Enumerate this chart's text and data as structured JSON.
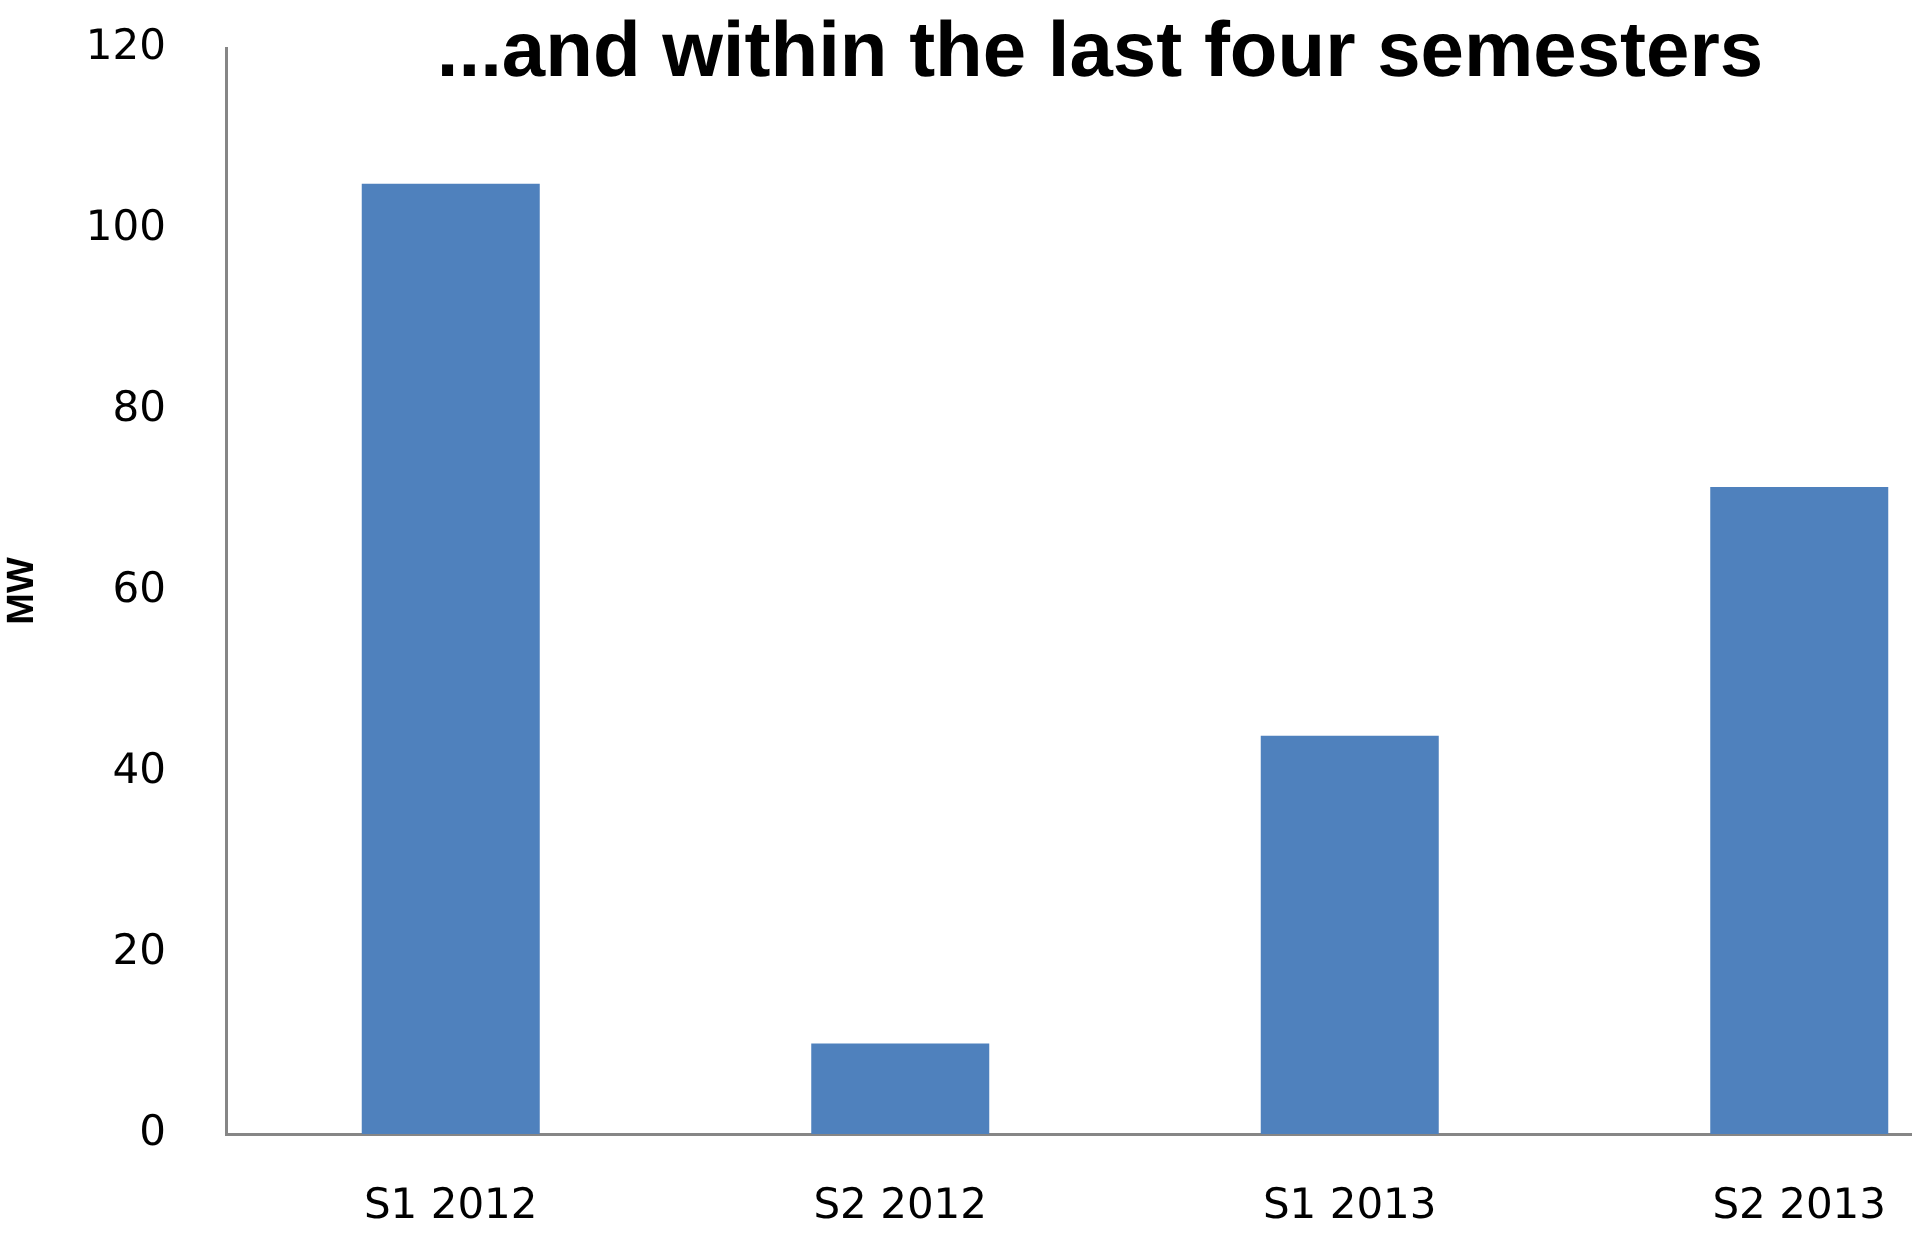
{
  "chart_data": {
    "type": "bar",
    "title": "...and within the last four semesters",
    "ylabel": "MW",
    "categories": [
      "S1 2012",
      "S2 2012",
      "S1 2013",
      "S2 2013"
    ],
    "values": [
      105,
      10,
      44,
      71.5
    ],
    "color": "#4f81bd",
    "ylim": [
      0,
      120
    ],
    "yticks": [
      0,
      20,
      40,
      60,
      80,
      100,
      120
    ],
    "grid": false,
    "legend": false
  }
}
